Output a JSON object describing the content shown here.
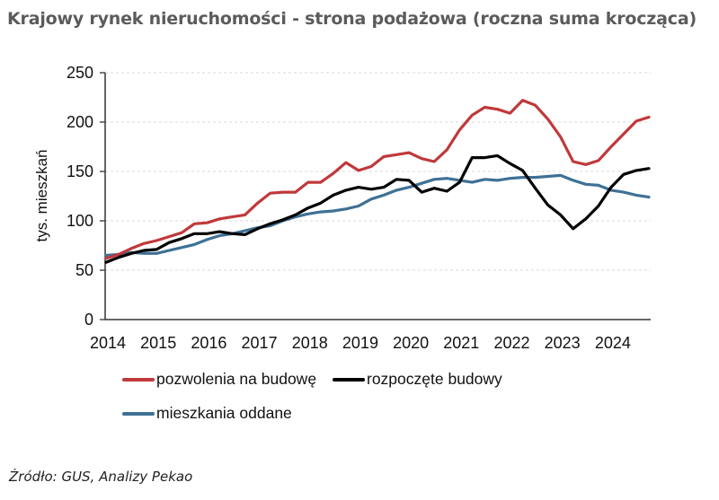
{
  "title": "Krajowy rynek nieruchomości - strona podażowa (roczna suma krocząca)",
  "source": "Źródło: GUS, Analizy Pekao",
  "chart_data": {
    "type": "line",
    "title": "Krajowy rynek nieruchomości - strona podażowa (roczna suma krocząca)",
    "xlabel": "",
    "ylabel": "tys. mieszkań",
    "ylim": [
      0,
      250
    ],
    "yticks": [
      0,
      50,
      100,
      150,
      200,
      250
    ],
    "xtick_labels": [
      "2014",
      "2015",
      "2016",
      "2017",
      "2018",
      "2019",
      "2020",
      "2021",
      "2022",
      "2023",
      "2024"
    ],
    "grid": "horizontal dashed, light grey",
    "legend_position": "bottom",
    "x": [
      "2014Q1",
      "2014Q2",
      "2014Q3",
      "2014Q4",
      "2015Q1",
      "2015Q2",
      "2015Q3",
      "2015Q4",
      "2016Q1",
      "2016Q2",
      "2016Q3",
      "2016Q4",
      "2017Q1",
      "2017Q2",
      "2017Q3",
      "2017Q4",
      "2018Q1",
      "2018Q2",
      "2018Q3",
      "2018Q4",
      "2019Q1",
      "2019Q2",
      "2019Q3",
      "2019Q4",
      "2020Q1",
      "2020Q2",
      "2020Q3",
      "2020Q4",
      "2021Q1",
      "2021Q2",
      "2021Q3",
      "2021Q4",
      "2022Q1",
      "2022Q2",
      "2022Q3",
      "2022Q4",
      "2023Q1",
      "2023Q2",
      "2023Q3",
      "2023Q4",
      "2024Q1",
      "2024Q2",
      "2024Q3",
      "2024Q4"
    ],
    "series": [
      {
        "name": "pozwolenia na budowę",
        "color": "#c0393b",
        "values": [
          62,
          66,
          72,
          77,
          80,
          84,
          88,
          97,
          98,
          102,
          104,
          106,
          118,
          128,
          129,
          129,
          139,
          139,
          148,
          159,
          151,
          155,
          165,
          167,
          169,
          163,
          160,
          172,
          192,
          207,
          215,
          213,
          209,
          222,
          217,
          203,
          185,
          160,
          157,
          161,
          175,
          188,
          201,
          205
        ]
      },
      {
        "name": "rozpoczęte budowy",
        "color": "#000000",
        "values": [
          58,
          63,
          67,
          70,
          71,
          78,
          82,
          87,
          87,
          89,
          87,
          86,
          92,
          97,
          101,
          106,
          113,
          118,
          126,
          131,
          134,
          132,
          134,
          142,
          141,
          129,
          133,
          130,
          139,
          164,
          164,
          166,
          158,
          151,
          133,
          116,
          106,
          92,
          102,
          115,
          134,
          147,
          151,
          153
        ]
      },
      {
        "name": "mieszkania oddane",
        "color": "#3e7195",
        "values": [
          65,
          66,
          68,
          67,
          67,
          70,
          73,
          76,
          81,
          85,
          87,
          90,
          93,
          95,
          100,
          104,
          107,
          109,
          110,
          112,
          115,
          122,
          126,
          131,
          134,
          138,
          142,
          143,
          141,
          139,
          142,
          141,
          143,
          144,
          144,
          145,
          146,
          141,
          137,
          136,
          131,
          129,
          126,
          124
        ]
      }
    ]
  }
}
